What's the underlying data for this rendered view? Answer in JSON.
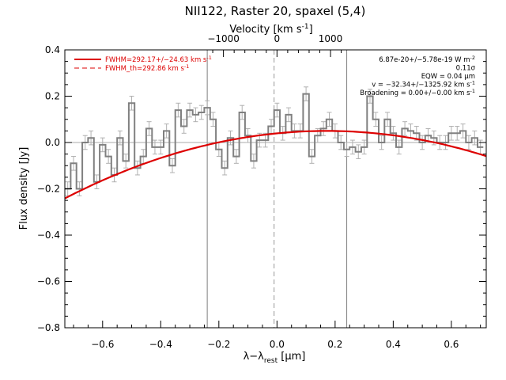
{
  "chart_data": {
    "type": "line",
    "title": "NII122, Raster 20, spaxel (5,4)",
    "xlabel": "λ−λrest [μm]",
    "xlabel_parts": {
      "base": "λ−λ",
      "sub": "rest",
      "unit_open": " [",
      "unit_mu": "μ",
      "unit_close": "m]"
    },
    "top_xlabel": "Velocity [km s",
    "top_xlabel_sup": "-1",
    "top_xlabel_close": "]",
    "ylabel": "Flux density [Jy]",
    "xlim": [
      -0.73,
      0.72
    ],
    "ylim": [
      -0.8,
      0.4
    ],
    "x_ticks": [
      -0.6,
      -0.4,
      -0.2,
      0.0,
      0.2,
      0.4,
      0.6
    ],
    "x_tick_labels": [
      "−0.6",
      "−0.4",
      "−0.2",
      "0.0",
      "0.2",
      "0.4",
      "0.6"
    ],
    "y_ticks": [
      -0.8,
      -0.6,
      -0.4,
      -0.2,
      0.0,
      0.2,
      0.4
    ],
    "y_tick_labels": [
      "−0.8",
      "−0.6",
      "−0.4",
      "−0.2",
      "0.0",
      "0.2",
      "0.4"
    ],
    "top_axis_km_per_um": 5428,
    "top_ticks": [
      -1000,
      0,
      1000
    ],
    "top_tick_labels": [
      "−1000",
      "0",
      "1000"
    ],
    "vertical_lines": [
      -0.24,
      0.24
    ],
    "center_dashed_line": -0.01,
    "zero_line": 0.0,
    "spectrum": {
      "name": "data",
      "x": [
        -0.72,
        -0.7,
        -0.68,
        -0.66,
        -0.64,
        -0.62,
        -0.6,
        -0.58,
        -0.56,
        -0.54,
        -0.52,
        -0.5,
        -0.48,
        -0.46,
        -0.44,
        -0.42,
        -0.4,
        -0.38,
        -0.36,
        -0.34,
        -0.32,
        -0.3,
        -0.28,
        -0.26,
        -0.24,
        -0.22,
        -0.2,
        -0.18,
        -0.16,
        -0.14,
        -0.12,
        -0.1,
        -0.08,
        -0.06,
        -0.04,
        -0.02,
        0.0,
        0.02,
        0.04,
        0.06,
        0.08,
        0.1,
        0.12,
        0.14,
        0.16,
        0.18,
        0.2,
        0.22,
        0.24,
        0.26,
        0.28,
        0.3,
        0.32,
        0.34,
        0.36,
        0.38,
        0.4,
        0.42,
        0.44,
        0.46,
        0.48,
        0.5,
        0.52,
        0.54,
        0.56,
        0.58,
        0.6,
        0.62,
        0.64,
        0.66,
        0.68,
        0.7
      ],
      "values": [
        -0.2,
        -0.09,
        -0.2,
        0.0,
        0.02,
        -0.17,
        -0.01,
        -0.06,
        -0.14,
        0.02,
        -0.08,
        0.17,
        -0.11,
        -0.06,
        0.06,
        -0.02,
        -0.02,
        0.05,
        -0.1,
        0.14,
        0.07,
        0.14,
        0.12,
        0.13,
        0.15,
        0.1,
        -0.03,
        -0.11,
        0.02,
        -0.06,
        0.13,
        0.03,
        -0.08,
        0.01,
        0.01,
        0.07,
        0.14,
        0.04,
        0.12,
        0.05,
        0.05,
        0.21,
        -0.06,
        0.03,
        0.06,
        0.1,
        0.05,
        0.0,
        -0.03,
        -0.02,
        -0.04,
        -0.02,
        0.2,
        0.1,
        0.0,
        0.1,
        0.04,
        -0.02,
        0.06,
        0.05,
        0.04,
        0.0,
        0.03,
        0.02,
        0.0,
        0.0,
        0.04,
        0.04,
        0.05,
        0.0,
        0.02,
        -0.02
      ],
      "error": 0.03,
      "color": "#808080"
    },
    "fit": {
      "name": "fit",
      "center": 0.17,
      "peak": 0.05,
      "curvature": 0.36,
      "color": "#dd0000"
    },
    "legend": [
      {
        "label": "FWHM=292.17+/−24.63 km s",
        "sup": "-1",
        "style": "solid",
        "color": "#dd0000"
      },
      {
        "label": "FWHM_th=292.86 km s",
        "sup": "-1",
        "style": "dashed",
        "color": "#dd0000"
      }
    ],
    "annotations": [
      {
        "text": "6.87e-20+/−5.78e-19 W m",
        "sup": "-2"
      },
      {
        "text": "0.11σ",
        "sup": ""
      },
      {
        "text": "EQW = 0.04 μm",
        "sup": ""
      },
      {
        "text": "v = −32.34+/−1325.92 km s",
        "sup": "-1"
      },
      {
        "text": "Broadening = 0.00+/−0.00 km s",
        "sup": "-1"
      }
    ],
    "legend_position": "top-left",
    "annotation_position": "top-right",
    "grid": false
  }
}
